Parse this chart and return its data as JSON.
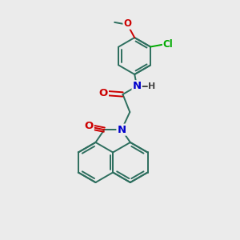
{
  "bg_color": "#ebebeb",
  "bond_color": "#2d6e5e",
  "bond_width": 1.4,
  "atom_colors": {
    "N": "#0000cc",
    "O": "#cc0000",
    "Cl": "#00aa00",
    "H": "#444444"
  },
  "font_size": 8.5,
  "fig_size": [
    3.0,
    3.0
  ],
  "dpi": 100
}
